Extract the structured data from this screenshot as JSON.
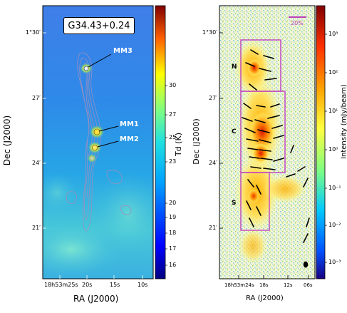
{
  "left_panel": {
    "source_label": "G34.43+0.24",
    "cores": [
      {
        "name": "MM3"
      },
      {
        "name": "MM1"
      },
      {
        "name": "MM2"
      }
    ],
    "y_ticks": [
      "1°30′",
      "27′",
      "24′",
      "21′"
    ],
    "x_ticks": [
      "18h53m25s",
      "20s",
      "15s",
      "10s"
    ],
    "xlabel": "RA (J2000)",
    "ylabel": "Dec (J2000)",
    "colorbar": {
      "label": "Td (K)",
      "ticks": [
        "30",
        "27",
        "25",
        "23",
        "20",
        "19",
        "18",
        "17",
        "16"
      ]
    }
  },
  "right_panel": {
    "fields": [
      {
        "label": "N"
      },
      {
        "label": "C"
      },
      {
        "label": "S"
      }
    ],
    "scale_label": "20%",
    "y_ticks": [
      "1°30′",
      "27′",
      "24′",
      "21′"
    ],
    "x_ticks": [
      "18h53m24s",
      "18s",
      "12s",
      "06s"
    ],
    "xlabel": "RA (J2000)",
    "ylabel": "Dec (J2000)",
    "colorbar": {
      "label": "Intensity (mJy/beam)",
      "ticks": [
        "10³",
        "10²",
        "10¹",
        "10⁰",
        "10⁻¹",
        "10⁻²",
        "10⁻³"
      ]
    }
  },
  "colors": {
    "accent_box": "#c040c0",
    "vector": "#000000",
    "contour": "#9a8fc0"
  }
}
